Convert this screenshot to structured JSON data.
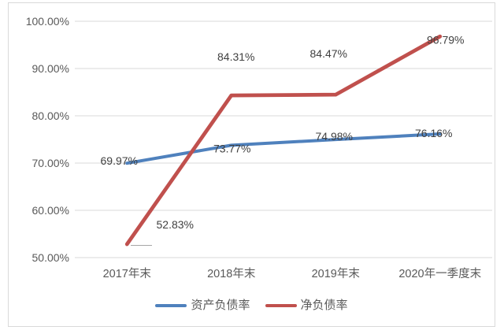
{
  "chart_data": {
    "type": "line",
    "title": "",
    "categories": [
      "2017年末",
      "2018年末",
      "2019年末",
      "2020年一季度末"
    ],
    "series": [
      {
        "name": "资产负债率",
        "color": "#4F81BD",
        "values": [
          69.97,
          73.77,
          74.98,
          76.16
        ],
        "labels": [
          "69.97%",
          "73.77%",
          "74.98%",
          "76.16%"
        ]
      },
      {
        "name": "净负债率",
        "color": "#C0504D",
        "values": [
          52.83,
          84.31,
          84.47,
          96.79
        ],
        "labels": [
          "52.83%",
          "84.31%",
          "84.47%",
          "96.79%"
        ]
      }
    ],
    "y_axis": {
      "ylim": [
        50,
        100
      ],
      "ticks": [
        50,
        60,
        70,
        80,
        90,
        100
      ],
      "tick_labels": [
        "50.00%",
        "60.00%",
        "70.00%",
        "80.00%",
        "90.00%",
        "100.00%"
      ],
      "format": "percent"
    },
    "xlabel": "",
    "ylabel": "",
    "grid": true,
    "legend_position": "bottom",
    "colors": {
      "gridline": "#D9D9D9",
      "frame_border": "#D9D9D9",
      "axis_text": "#595959",
      "data_label_text": "#404040",
      "leader_line": "#A6A6A6",
      "background": "#FFFFFF"
    }
  }
}
